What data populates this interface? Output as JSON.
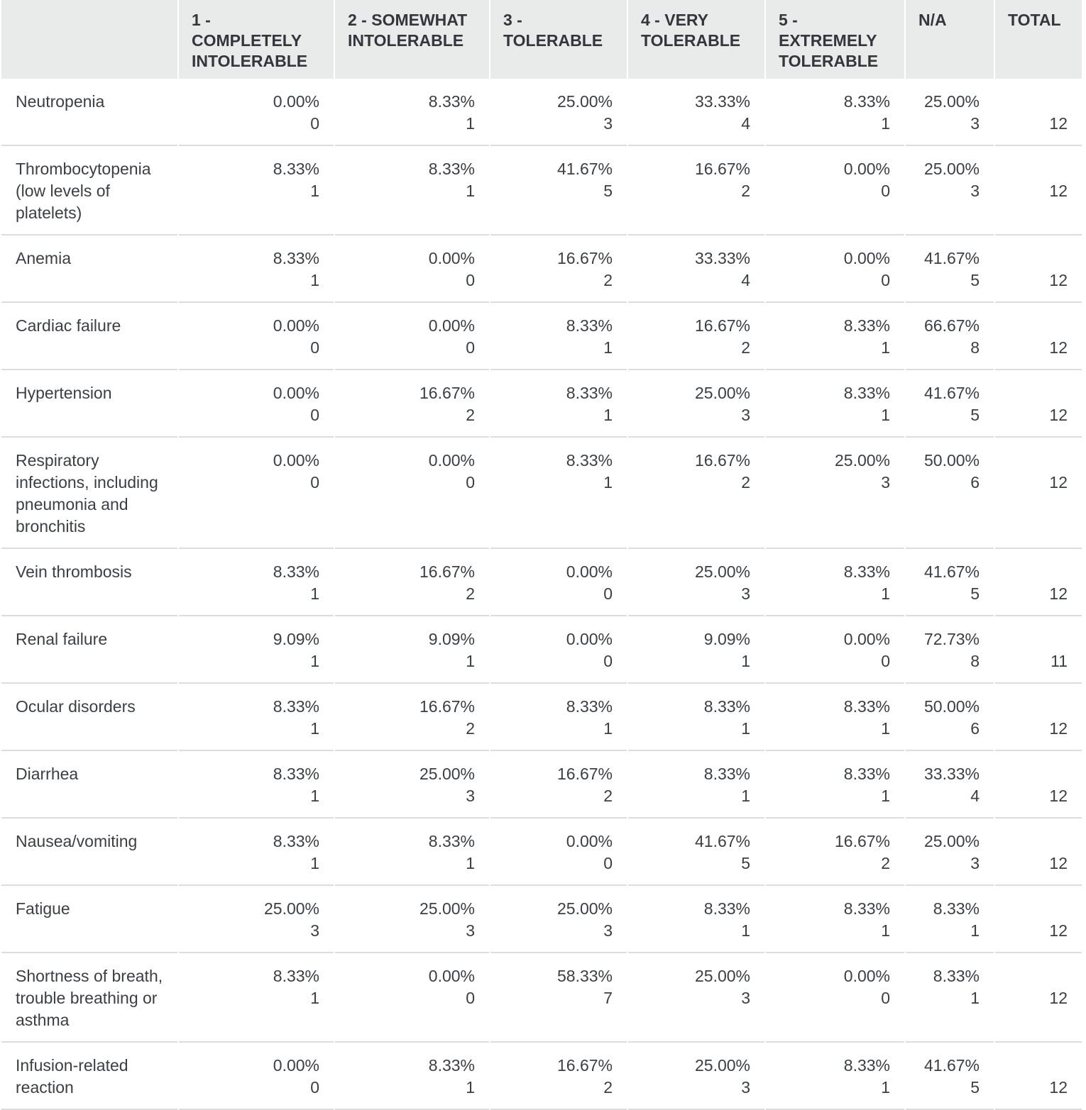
{
  "headers": [
    "",
    "1 - COMPLETELY INTOLERABLE",
    "2 - SOMEWHAT INTOLERABLE",
    "3 - TOLERABLE",
    "4 - VERY TOLERABLE",
    "5 - EXTREMELY TOLERABLE",
    "N/A",
    "TOTAL"
  ],
  "rows": [
    {
      "label": "Neutropenia",
      "cells": [
        [
          "0.00%",
          "0"
        ],
        [
          "8.33%",
          "1"
        ],
        [
          "25.00%",
          "3"
        ],
        [
          "33.33%",
          "4"
        ],
        [
          "8.33%",
          "1"
        ],
        [
          "25.00%",
          "3"
        ]
      ],
      "total": "12"
    },
    {
      "label": "Thrombocytopenia (low levels of platelets)",
      "cells": [
        [
          "8.33%",
          "1"
        ],
        [
          "8.33%",
          "1"
        ],
        [
          "41.67%",
          "5"
        ],
        [
          "16.67%",
          "2"
        ],
        [
          "0.00%",
          "0"
        ],
        [
          "25.00%",
          "3"
        ]
      ],
      "total": "12"
    },
    {
      "label": "Anemia",
      "cells": [
        [
          "8.33%",
          "1"
        ],
        [
          "0.00%",
          "0"
        ],
        [
          "16.67%",
          "2"
        ],
        [
          "33.33%",
          "4"
        ],
        [
          "0.00%",
          "0"
        ],
        [
          "41.67%",
          "5"
        ]
      ],
      "total": "12"
    },
    {
      "label": "Cardiac failure",
      "cells": [
        [
          "0.00%",
          "0"
        ],
        [
          "0.00%",
          "0"
        ],
        [
          "8.33%",
          "1"
        ],
        [
          "16.67%",
          "2"
        ],
        [
          "8.33%",
          "1"
        ],
        [
          "66.67%",
          "8"
        ]
      ],
      "total": "12"
    },
    {
      "label": "Hypertension",
      "cells": [
        [
          "0.00%",
          "0"
        ],
        [
          "16.67%",
          "2"
        ],
        [
          "8.33%",
          "1"
        ],
        [
          "25.00%",
          "3"
        ],
        [
          "8.33%",
          "1"
        ],
        [
          "41.67%",
          "5"
        ]
      ],
      "total": "12"
    },
    {
      "label": "Respiratory infections, including pneumonia and bronchitis",
      "cells": [
        [
          "0.00%",
          "0"
        ],
        [
          "0.00%",
          "0"
        ],
        [
          "8.33%",
          "1"
        ],
        [
          "16.67%",
          "2"
        ],
        [
          "25.00%",
          "3"
        ],
        [
          "50.00%",
          "6"
        ]
      ],
      "total": "12"
    },
    {
      "label": "Vein thrombosis",
      "cells": [
        [
          "8.33%",
          "1"
        ],
        [
          "16.67%",
          "2"
        ],
        [
          "0.00%",
          "0"
        ],
        [
          "25.00%",
          "3"
        ],
        [
          "8.33%",
          "1"
        ],
        [
          "41.67%",
          "5"
        ]
      ],
      "total": "12"
    },
    {
      "label": "Renal failure",
      "cells": [
        [
          "9.09%",
          "1"
        ],
        [
          "9.09%",
          "1"
        ],
        [
          "0.00%",
          "0"
        ],
        [
          "9.09%",
          "1"
        ],
        [
          "0.00%",
          "0"
        ],
        [
          "72.73%",
          "8"
        ]
      ],
      "total": "11"
    },
    {
      "label": "Ocular disorders",
      "cells": [
        [
          "8.33%",
          "1"
        ],
        [
          "16.67%",
          "2"
        ],
        [
          "8.33%",
          "1"
        ],
        [
          "8.33%",
          "1"
        ],
        [
          "8.33%",
          "1"
        ],
        [
          "50.00%",
          "6"
        ]
      ],
      "total": "12"
    },
    {
      "label": "Diarrhea",
      "cells": [
        [
          "8.33%",
          "1"
        ],
        [
          "25.00%",
          "3"
        ],
        [
          "16.67%",
          "2"
        ],
        [
          "8.33%",
          "1"
        ],
        [
          "8.33%",
          "1"
        ],
        [
          "33.33%",
          "4"
        ]
      ],
      "total": "12"
    },
    {
      "label": "Nausea/vomiting",
      "cells": [
        [
          "8.33%",
          "1"
        ],
        [
          "8.33%",
          "1"
        ],
        [
          "0.00%",
          "0"
        ],
        [
          "41.67%",
          "5"
        ],
        [
          "16.67%",
          "2"
        ],
        [
          "25.00%",
          "3"
        ]
      ],
      "total": "12"
    },
    {
      "label": "Fatigue",
      "cells": [
        [
          "25.00%",
          "3"
        ],
        [
          "25.00%",
          "3"
        ],
        [
          "25.00%",
          "3"
        ],
        [
          "8.33%",
          "1"
        ],
        [
          "8.33%",
          "1"
        ],
        [
          "8.33%",
          "1"
        ]
      ],
      "total": "12"
    },
    {
      "label": "Shortness of breath, trouble breathing or asthma",
      "cells": [
        [
          "8.33%",
          "1"
        ],
        [
          "0.00%",
          "0"
        ],
        [
          "58.33%",
          "7"
        ],
        [
          "25.00%",
          "3"
        ],
        [
          "0.00%",
          "0"
        ],
        [
          "8.33%",
          "1"
        ]
      ],
      "total": "12"
    },
    {
      "label": "Infusion-related reaction",
      "cells": [
        [
          "0.00%",
          "0"
        ],
        [
          "8.33%",
          "1"
        ],
        [
          "16.67%",
          "2"
        ],
        [
          "25.00%",
          "3"
        ],
        [
          "8.33%",
          "1"
        ],
        [
          "41.67%",
          "5"
        ]
      ],
      "total": "12"
    }
  ]
}
